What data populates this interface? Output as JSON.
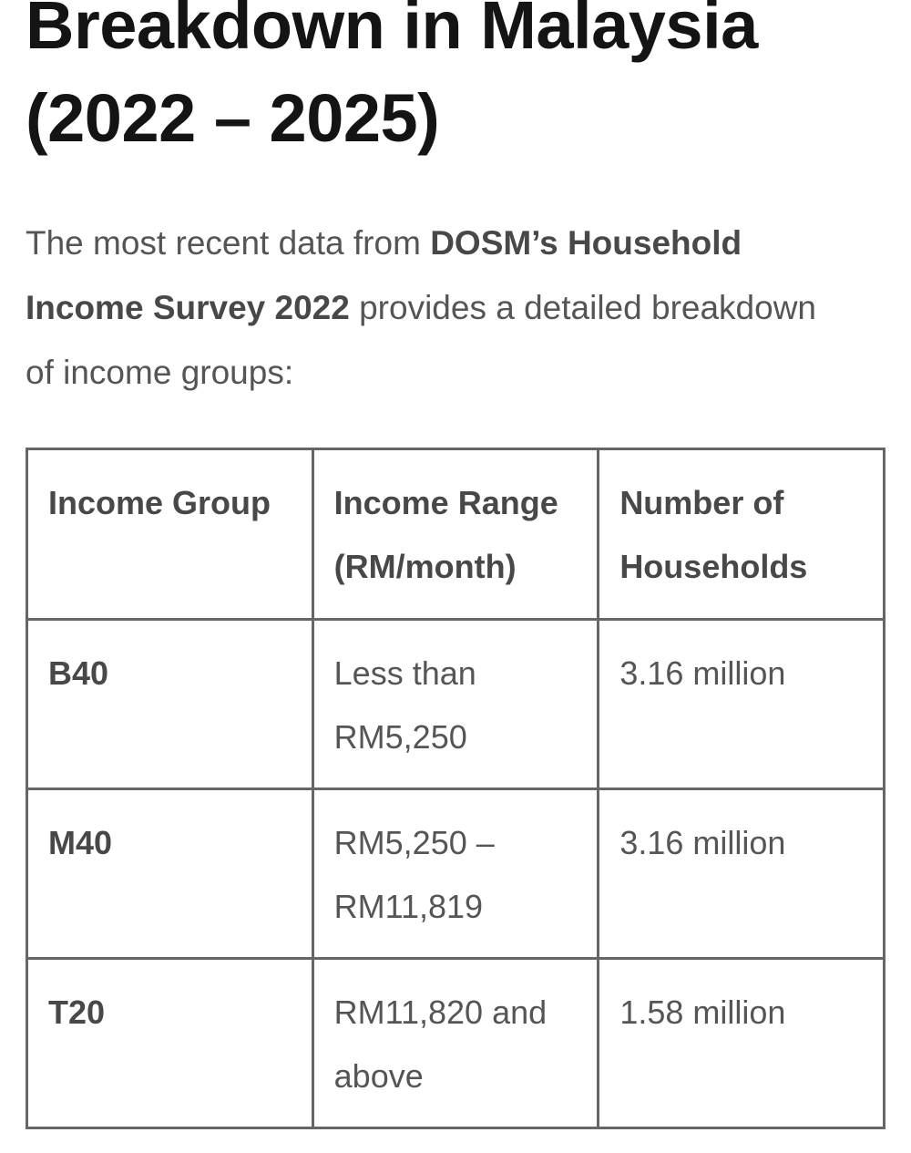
{
  "heading": {
    "title": "Breakdown in Malaysia (2022 – 2025)"
  },
  "paragraph": {
    "segments": [
      {
        "text": "The most recent data from ",
        "bold": false
      },
      {
        "text": "DOSM’s Household Income Survey 2022",
        "bold": true
      },
      {
        "text": " provides a detailed breakdown of income groups:",
        "bold": false
      }
    ]
  },
  "table": {
    "header": [
      "Income Group",
      "Income Range (RM/month)",
      "Number of Households"
    ],
    "rows": [
      [
        "B40",
        "Less than RM5,250",
        "3.16 million"
      ],
      [
        "M40",
        "RM5,250 – RM11,819",
        "3.16 million"
      ],
      [
        "T20",
        "RM11,820 and above",
        "1.58 million"
      ]
    ]
  }
}
